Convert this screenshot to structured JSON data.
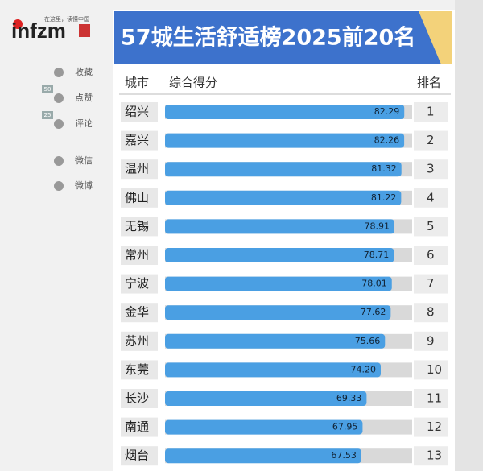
{
  "logo": {
    "brand": "infzm",
    "tagline": "在这里，读懂中国"
  },
  "sidebar": [
    {
      "label": "收藏"
    },
    {
      "badge": 50,
      "label": "点赞"
    },
    {
      "badge": 25,
      "label": "评论"
    },
    {
      "label": "微信"
    },
    {
      "label": "微博"
    }
  ],
  "chart_data": {
    "type": "bar",
    "orientation": "horizontal",
    "title": "57城生活舒适榜2025前20名",
    "headers": [
      "城市",
      "综合得分",
      "排名"
    ],
    "categories": [
      "绍兴",
      "嘉兴",
      "温州",
      "佛山",
      "无锡",
      "常州",
      "宁波",
      "金华",
      "苏州",
      "东莞",
      "长沙",
      "南通",
      "烟台"
    ],
    "values": [
      82.29,
      82.26,
      81.32,
      81.22,
      78.91,
      78.71,
      78.01,
      77.62,
      75.66,
      74.2,
      69.33,
      67.95,
      67.53
    ],
    "value_labels": [
      "82.29",
      "82.26",
      "81.32",
      "81.22",
      "78.91",
      "78.71",
      "78.01",
      "77.62",
      "75.66",
      "74.20",
      "69.33",
      "67.95",
      "67.53"
    ],
    "ranks": [
      1,
      2,
      3,
      4,
      5,
      6,
      7,
      8,
      9,
      10,
      11,
      12,
      13
    ],
    "color": "#4a9fe3",
    "xlim": [
      0,
      85
    ]
  }
}
